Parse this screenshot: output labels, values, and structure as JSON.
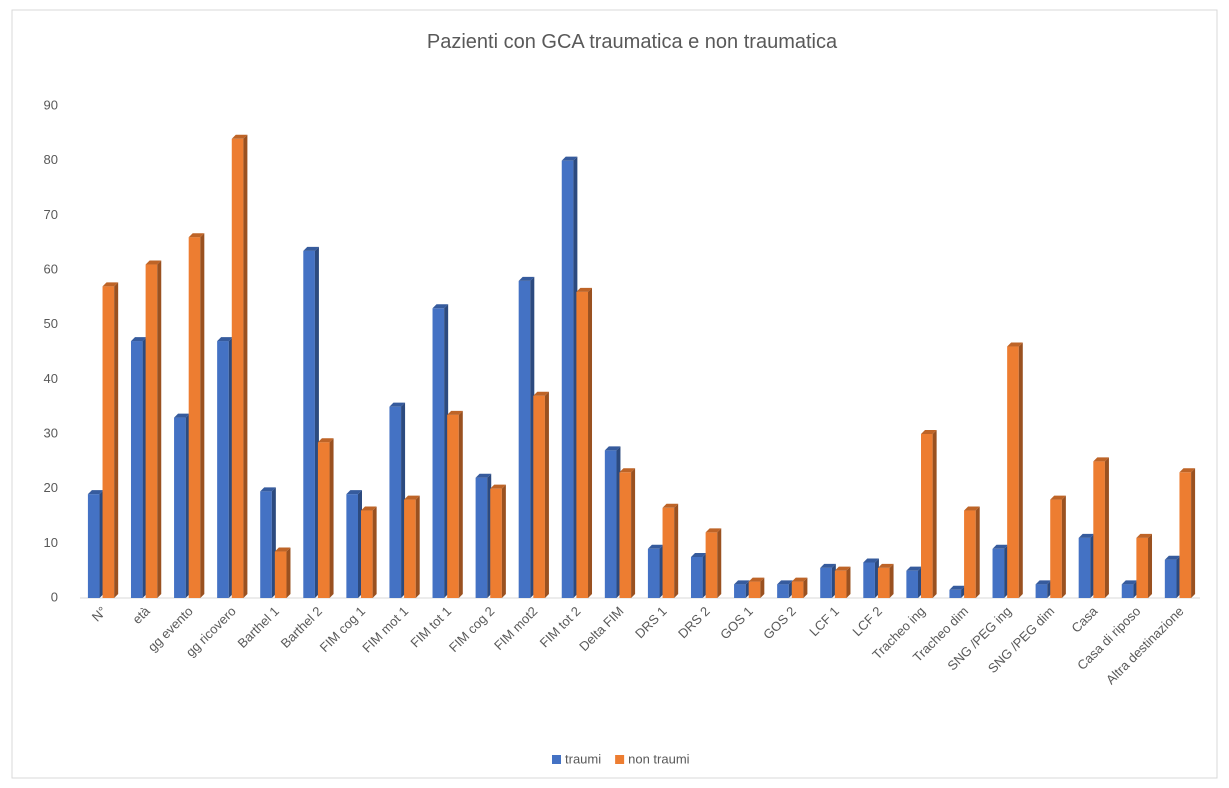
{
  "chart_data": {
    "type": "bar",
    "title": "Pazienti con GCA traumatica e non traumatica",
    "categories": [
      "N°",
      "età",
      "gg evento",
      "gg ricovero",
      "Barthel 1",
      "Barthel 2",
      "FIM cog 1",
      "FIM mot 1",
      "FIM tot 1",
      "FIM cog 2",
      "FIM mot2",
      "FIM tot 2",
      "Delta FIM",
      "DRS 1",
      "DRS 2",
      "GOS 1",
      "GOS 2",
      "LCF 1",
      "LCF 2",
      "Tracheo ing",
      "Tracheo dim",
      "SNG /PEG ing",
      "SNG /PEG dim",
      "Casa",
      "Casa di riposo",
      "Altra destinazione"
    ],
    "series": [
      {
        "name": "traumi",
        "color": "#4472c4",
        "values": [
          19,
          47,
          33,
          47,
          19.5,
          63.5,
          19,
          35,
          53,
          22,
          58,
          80,
          27,
          9,
          7.5,
          2.5,
          2.5,
          5.5,
          6.5,
          5,
          1.5,
          9,
          2.5,
          11,
          2.5,
          7
        ]
      },
      {
        "name": "non traumi",
        "color": "#ed7d31",
        "values": [
          57,
          61,
          66,
          84,
          8.5,
          28.5,
          16,
          18,
          33.5,
          20,
          37,
          56,
          23,
          16.5,
          12,
          3,
          3,
          5,
          5.5,
          30,
          16,
          46,
          18,
          25,
          11,
          23
        ]
      }
    ],
    "ylim": [
      0,
      90
    ],
    "yticks": [
      0,
      10,
      20,
      30,
      40,
      50,
      60,
      70,
      80,
      90
    ],
    "legend": "bottom"
  }
}
